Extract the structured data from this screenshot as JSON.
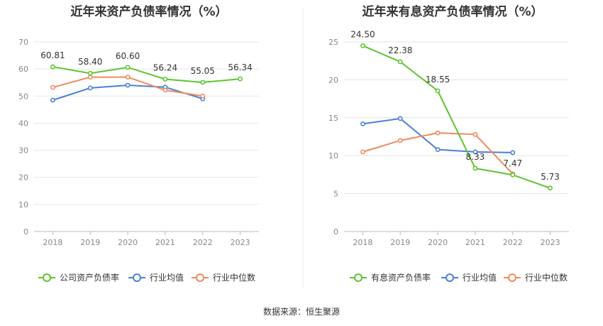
{
  "source_label": "数据来源：恒生聚源",
  "chart_data": [
    {
      "type": "line",
      "title": "近年来资产负债率情况（%）",
      "categories": [
        "2018",
        "2019",
        "2020",
        "2021",
        "2022",
        "2023"
      ],
      "ylim": [
        0,
        70
      ],
      "yticks": [
        0,
        10,
        20,
        30,
        40,
        50,
        60,
        70
      ],
      "grid": true,
      "legend_position": "bottom",
      "series": [
        {
          "name": "公司资产负债率",
          "color": "#5cc530",
          "values": [
            60.81,
            58.4,
            60.6,
            56.24,
            55.05,
            56.34
          ],
          "labels": [
            "60.81",
            "58.40",
            "60.60",
            "56.24",
            "55.05",
            "56.34"
          ]
        },
        {
          "name": "行业均值",
          "color": "#4a7fd8",
          "values": [
            48.5,
            53.0,
            54.0,
            53.3,
            49.0,
            null
          ]
        },
        {
          "name": "行业中位数",
          "color": "#f08a5d",
          "values": [
            53.2,
            57.0,
            57.0,
            52.2,
            50.0,
            null
          ]
        }
      ]
    },
    {
      "type": "line",
      "title": "近年来有息资产负债率情况（%）",
      "categories": [
        "2018",
        "2019",
        "2020",
        "2021",
        "2022",
        "2023"
      ],
      "ylim": [
        0,
        25
      ],
      "yticks": [
        0,
        5,
        10,
        15,
        20,
        25
      ],
      "grid": true,
      "legend_position": "bottom",
      "series": [
        {
          "name": "有息资产负债率",
          "color": "#5cc530",
          "values": [
            24.5,
            22.38,
            18.55,
            8.33,
            7.47,
            5.73
          ],
          "labels": [
            "24.50",
            "22.38",
            "18.55",
            "8.33",
            "7.47",
            "5.73"
          ]
        },
        {
          "name": "行业均值",
          "color": "#4a7fd8",
          "values": [
            14.2,
            14.9,
            10.8,
            10.5,
            10.4,
            null
          ]
        },
        {
          "name": "行业中位数",
          "color": "#f08a5d",
          "values": [
            10.5,
            12.0,
            13.0,
            12.8,
            7.6,
            null
          ]
        }
      ]
    }
  ]
}
